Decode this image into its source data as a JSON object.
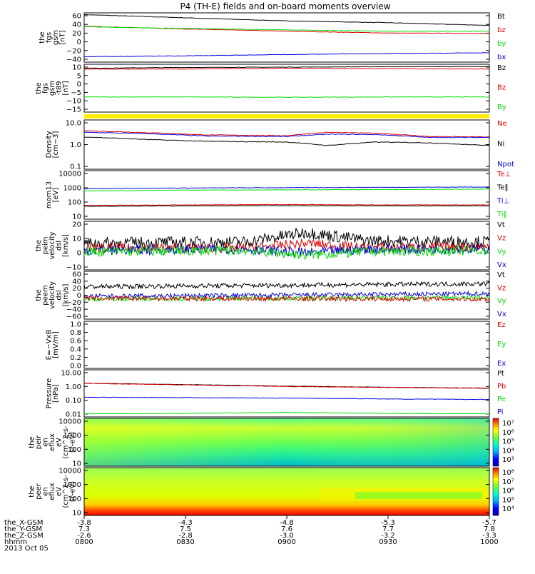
{
  "title": "P4 (TH-E) fields and on-board moments overview",
  "colors": {
    "black": "#000000",
    "red": "#dd0000",
    "green": "#00dd00",
    "blue": "#0000dd",
    "yellow": "#ffee00"
  },
  "x_axis": {
    "rows": [
      {
        "label": "the_X-GSM",
        "values": [
          "-3.8",
          "-4.3",
          "-4.8",
          "-5.3",
          "-5.7"
        ]
      },
      {
        "label": "the_Y-GSM",
        "values": [
          "7.3",
          "7.5",
          "7.6",
          "7.7",
          "7.8"
        ]
      },
      {
        "label": "the_Z-GSM",
        "values": [
          "-2.6",
          "-2.8",
          "-3.0",
          "-3.2",
          "-3.3"
        ]
      },
      {
        "label": "hhmm",
        "values": [
          "0800",
          "0830",
          "0900",
          "0930",
          "1000"
        ]
      }
    ],
    "date": "2013 Oct 05"
  },
  "chart_data": [
    {
      "id": "p1",
      "type": "line",
      "ylabel": [
        "the",
        "fgs",
        "gsm",
        "[nT]"
      ],
      "yticks": [
        "60",
        "40",
        "20",
        "0",
        "−20",
        "−40"
      ],
      "ylim": [
        -45,
        65
      ],
      "legend": [
        {
          "text": "Bt",
          "color": "black"
        },
        {
          "text": "bz",
          "color": "red"
        },
        {
          "text": "by",
          "color": "green"
        },
        {
          "text": "bx",
          "color": "blue"
        }
      ],
      "x": [
        0,
        0.25,
        0.5,
        0.75,
        1
      ],
      "series": [
        {
          "name": "Bt",
          "color": "black",
          "values": [
            61,
            54,
            47,
            43,
            37
          ]
        },
        {
          "name": "bz",
          "color": "red",
          "values": [
            35,
            29,
            24,
            20,
            19
          ]
        },
        {
          "name": "by",
          "color": "green",
          "values": [
            34,
            30,
            27,
            24,
            24
          ]
        },
        {
          "name": "bx",
          "color": "blue",
          "values": [
            -33,
            -31,
            -28,
            -26,
            -24
          ]
        }
      ]
    },
    {
      "id": "p2",
      "type": "line",
      "ylabel": [
        "the",
        "fgs",
        "gsm",
        "-t89",
        "[nT]"
      ],
      "yticks": [
        "10",
        "5",
        "0",
        "−5",
        "−10",
        "−15"
      ],
      "ylim": [
        -18,
        12
      ],
      "legend": [
        {
          "text": "Bz",
          "color": "black"
        },
        {
          "text": "Bz",
          "color": "red"
        },
        {
          "text": "By",
          "color": "green"
        }
      ],
      "x": [
        0,
        0.25,
        0.5,
        0.75,
        1
      ],
      "series": [
        {
          "name": "Bz",
          "color": "black",
          "values": [
            9.5,
            10,
            10.2,
            10.5,
            10.5
          ]
        },
        {
          "name": "Bz",
          "color": "red",
          "values": [
            9,
            9,
            9.5,
            9.2,
            9
          ]
        },
        {
          "name": "By",
          "color": "green",
          "values": [
            -8.5,
            -8.5,
            -8.7,
            -8.5,
            -8.5
          ]
        }
      ]
    },
    {
      "id": "p3",
      "type": "line",
      "ylabel": [
        "Density",
        "[cm−3]"
      ],
      "yticks": [
        "10.0",
        "1.0",
        "0.1"
      ],
      "scale": "log",
      "ylim": [
        0.1,
        12
      ],
      "legend": [
        {
          "text": "Ne",
          "color": "red"
        },
        {
          "text": "Ni",
          "color": "black"
        },
        {
          "text": "Npot",
          "color": "blue"
        }
      ],
      "x": [
        0,
        0.15,
        0.3,
        0.5,
        0.6,
        0.72,
        0.85,
        1
      ],
      "series": [
        {
          "name": "Ne",
          "color": "red",
          "values": [
            4.2,
            3.5,
            2.8,
            2.6,
            3.6,
            3.3,
            2.4,
            2.3
          ]
        },
        {
          "name": "Npot",
          "color": "blue",
          "values": [
            3.6,
            3.2,
            2.5,
            2.4,
            3.0,
            2.9,
            2.2,
            2.2
          ]
        },
        {
          "name": "Ni",
          "color": "black",
          "values": [
            2.3,
            1.8,
            1.5,
            1.4,
            1.0,
            1.4,
            1.3,
            1.0
          ]
        }
      ]
    },
    {
      "id": "p4",
      "type": "line",
      "ylabel": [
        "mom13",
        "[eV]"
      ],
      "yticks": [
        "10000",
        "1000",
        "100",
        "10"
      ],
      "scale": "log",
      "ylim": [
        10,
        12000
      ],
      "legend": [
        {
          "text": "Te⊥",
          "color": "red"
        },
        {
          "text": "Te‖",
          "color": "black"
        },
        {
          "text": "Ti⊥",
          "color": "blue"
        },
        {
          "text": "Ti‖",
          "color": "green"
        }
      ],
      "x": [
        0,
        0.25,
        0.5,
        0.75,
        1
      ],
      "series": [
        {
          "name": "Ti⊥",
          "color": "blue",
          "values": [
            850,
            950,
            1000,
            1050,
            1100
          ]
        },
        {
          "name": "Ti‖",
          "color": "green",
          "values": [
            620,
            700,
            720,
            760,
            800
          ]
        },
        {
          "name": "Te⊥",
          "color": "red",
          "values": [
            75,
            80,
            85,
            80,
            80
          ]
        },
        {
          "name": "Te‖",
          "color": "black",
          "values": [
            65,
            70,
            72,
            70,
            70
          ]
        }
      ]
    },
    {
      "id": "p5",
      "type": "line",
      "noisy": true,
      "ylabel": [
        "the",
        "peim",
        "velocity",
        "dsl",
        "[km/s]"
      ],
      "yticks": [
        "20",
        "10",
        "0",
        "−10"
      ],
      "ylim": [
        -18,
        22
      ],
      "legend": [
        {
          "text": "Vt",
          "color": "black"
        },
        {
          "text": "Vz",
          "color": "red"
        },
        {
          "text": "Vy",
          "color": "green"
        },
        {
          "text": "Vx",
          "color": "blue"
        }
      ],
      "x": [
        0,
        0.4,
        0.55,
        0.7,
        1
      ],
      "series": [
        {
          "name": "Vt",
          "color": "black",
          "values": [
            4,
            5,
            13,
            6,
            5
          ],
          "spread": 5
        },
        {
          "name": "Vz",
          "color": "red",
          "values": [
            0,
            0,
            4,
            0,
            1
          ],
          "spread": 4
        },
        {
          "name": "Vx",
          "color": "blue",
          "values": [
            -2,
            -1,
            -4,
            -1,
            -1
          ],
          "spread": 4
        },
        {
          "name": "Vy",
          "color": "green",
          "values": [
            -3,
            -2,
            -6,
            -3,
            -2
          ],
          "spread": 4
        }
      ]
    },
    {
      "id": "p6",
      "type": "line",
      "noisy": true,
      "ylabel": [
        "the",
        "peem",
        "velocity",
        "dsl",
        "[km/s]"
      ],
      "yticks": [
        "60",
        "40",
        "20",
        "0",
        "−20",
        "−40",
        "−60"
      ],
      "ylim": [
        -62,
        62
      ],
      "legend": [
        {
          "text": "Vt",
          "color": "black"
        },
        {
          "text": "Vz",
          "color": "red"
        },
        {
          "text": "Vy",
          "color": "green"
        },
        {
          "text": "Vx",
          "color": "blue"
        }
      ],
      "x": [
        0,
        0.5,
        1
      ],
      "series": [
        {
          "name": "Vt",
          "color": "black",
          "values": [
            22,
            26,
            30
          ],
          "spread": 6
        },
        {
          "name": "Vx",
          "color": "blue",
          "values": [
            -3,
            0,
            4
          ],
          "spread": 6
        },
        {
          "name": "Vy",
          "color": "green",
          "values": [
            -10,
            -8,
            -6
          ],
          "spread": 6
        },
        {
          "name": "Vz",
          "color": "red",
          "values": [
            -8,
            -9,
            -10
          ],
          "spread": 6
        }
      ]
    },
    {
      "id": "p7",
      "type": "line",
      "ylabel": [
        "E=−VxB",
        "[mV/m]"
      ],
      "yticks": [
        "1.0",
        "0.8",
        "0.6",
        "0.4",
        "0.2",
        "0.0"
      ],
      "ylim": [
        0,
        1
      ],
      "legend": [
        {
          "text": "Ez",
          "color": "red"
        },
        {
          "text": "Ey",
          "color": "green"
        },
        {
          "text": "Ex",
          "color": "blue"
        }
      ],
      "series": []
    },
    {
      "id": "p8",
      "type": "line",
      "ylabel": [
        "Pressure",
        "[nPa]"
      ],
      "yticks": [
        "10.00",
        "1.00",
        "0.10",
        "0.01"
      ],
      "scale": "log",
      "ylim": [
        0.008,
        12
      ],
      "legend": [
        {
          "text": "Pt",
          "color": "black"
        },
        {
          "text": "Pb",
          "color": "red"
        },
        {
          "text": "Pe",
          "color": "green"
        },
        {
          "text": "Pi",
          "color": "blue"
        }
      ],
      "x": [
        0,
        0.25,
        0.5,
        0.75,
        1
      ],
      "series": [
        {
          "name": "Pt",
          "color": "black",
          "values": [
            1.5,
            1.2,
            0.95,
            0.8,
            0.7
          ]
        },
        {
          "name": "Pb",
          "color": "red",
          "values": [
            1.45,
            1.15,
            0.9,
            0.78,
            0.68
          ]
        },
        {
          "name": "Pi",
          "color": "blue",
          "values": [
            0.17,
            0.16,
            0.15,
            0.13,
            0.12
          ]
        },
        {
          "name": "Pe",
          "color": "green",
          "values": [
            0.013,
            0.014,
            0.016,
            0.014,
            0.013
          ]
        }
      ]
    },
    {
      "id": "p9",
      "type": "heatmap",
      "ylabel": [
        "the",
        "peir",
        "en",
        "eflux",
        "eV",
        "(cm^2-s-",
        "sr-eV)"
      ],
      "yticks": [
        "10000",
        "1000",
        "100",
        "10"
      ],
      "scale": "log",
      "colorbar": {
        "ticks": [
          "10⁷",
          "10⁶",
          "10⁵",
          "10⁴",
          "10³"
        ]
      }
    },
    {
      "id": "p10",
      "type": "heatmap",
      "ylabel": [
        "the",
        "peer",
        "en",
        "eflux",
        "eV",
        "(cm^2-s-",
        "sr-eV)"
      ],
      "yticks": [
        "10000",
        "1000",
        "100",
        "10"
      ],
      "scale": "log",
      "colorbar": {
        "ticks": [
          "10⁸",
          "10⁷",
          "10⁶",
          "10⁵",
          "10⁴"
        ]
      }
    }
  ]
}
